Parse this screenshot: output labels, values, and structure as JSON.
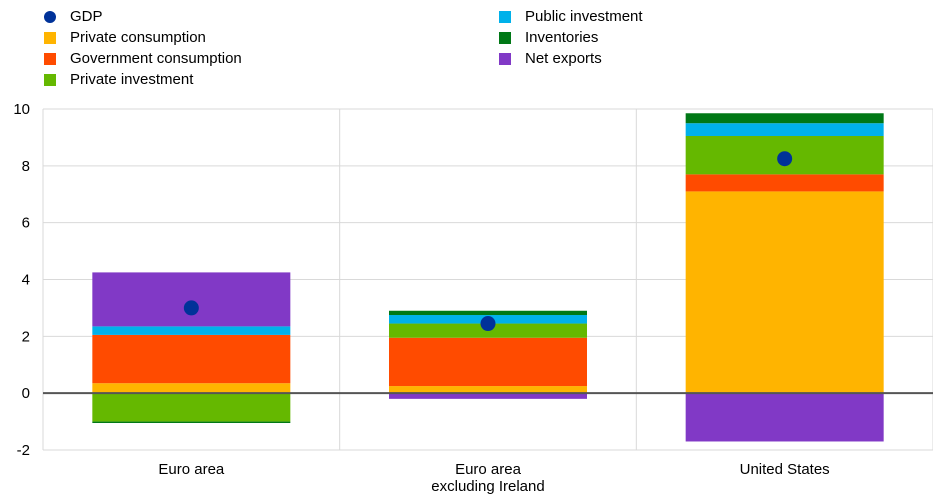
{
  "chart_data": {
    "type": "bar",
    "stacked": true,
    "categories": [
      "Euro area",
      "Euro area excluding Ireland",
      "United States"
    ],
    "category_lines": [
      [
        "Euro area"
      ],
      [
        "Euro area",
        "excluding Ireland"
      ],
      [
        "United States"
      ]
    ],
    "series": [
      {
        "name": "Private consumption",
        "color": "#FFB400",
        "values": [
          0.35,
          0.25,
          7.1
        ]
      },
      {
        "name": "Government consumption",
        "color": "#FF4B00",
        "values": [
          1.7,
          1.7,
          0.6
        ]
      },
      {
        "name": "Private investment",
        "color": "#65B800",
        "values": [
          -1.0,
          0.5,
          1.35
        ]
      },
      {
        "name": "Public investment",
        "color": "#00B1EA",
        "values": [
          0.3,
          0.3,
          0.45
        ]
      },
      {
        "name": "Inventories",
        "color": "#007816",
        "values": [
          -0.05,
          0.15,
          0.35
        ]
      },
      {
        "name": "Net exports",
        "color": "#8139C6",
        "values": [
          1.9,
          -0.2,
          -1.7
        ]
      }
    ],
    "gdp": {
      "name": "GDP",
      "color": "#003299",
      "values": [
        3.0,
        2.45,
        8.25
      ]
    },
    "ylim": [
      -2,
      10
    ],
    "yticks": [
      -2,
      0,
      2,
      4,
      6,
      8,
      10
    ],
    "grid": true,
    "legend_position": "top",
    "title": "",
    "xlabel": "",
    "ylabel": ""
  }
}
